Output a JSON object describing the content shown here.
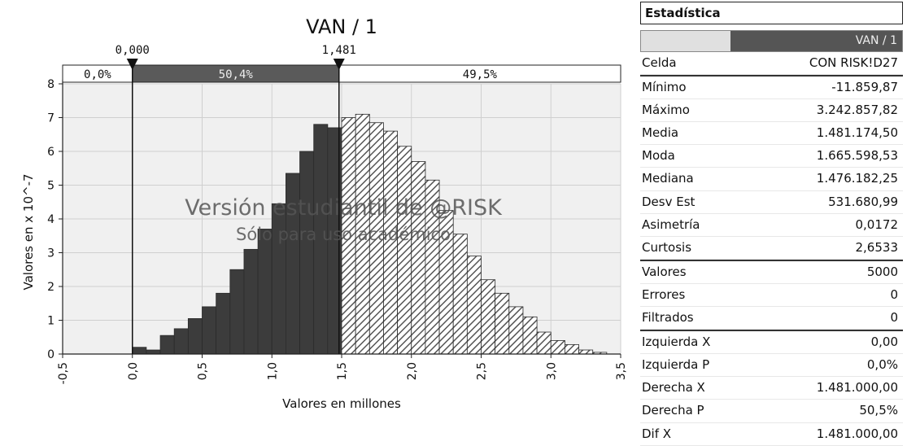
{
  "chart_data": {
    "type": "histogram",
    "title": "VAN / 1",
    "xlabel": "Valores en millones",
    "ylabel": "Valores en x 10^-7",
    "xlim": [
      -0.5,
      3.5
    ],
    "ylim": [
      0,
      8
    ],
    "x_ticks": [
      "-0,5",
      "0,0",
      "0,5",
      "1,0",
      "1,5",
      "2,0",
      "2,5",
      "3,0",
      "3,5"
    ],
    "y_ticks": [
      "0",
      "1",
      "2",
      "3",
      "4",
      "5",
      "6",
      "7",
      "8"
    ],
    "bin_width": 0.1,
    "bins": [
      {
        "x0": 0.0,
        "y": 0.2
      },
      {
        "x0": 0.1,
        "y": 0.12
      },
      {
        "x0": 0.2,
        "y": 0.55
      },
      {
        "x0": 0.3,
        "y": 0.75
      },
      {
        "x0": 0.4,
        "y": 1.05
      },
      {
        "x0": 0.5,
        "y": 1.4
      },
      {
        "x0": 0.6,
        "y": 1.8
      },
      {
        "x0": 0.7,
        "y": 2.5
      },
      {
        "x0": 0.8,
        "y": 3.1
      },
      {
        "x0": 0.9,
        "y": 3.7
      },
      {
        "x0": 1.0,
        "y": 4.45
      },
      {
        "x0": 1.1,
        "y": 5.35
      },
      {
        "x0": 1.2,
        "y": 6.0
      },
      {
        "x0": 1.3,
        "y": 6.8
      },
      {
        "x0": 1.4,
        "y": 6.7
      },
      {
        "x0": 1.5,
        "y": 7.0
      },
      {
        "x0": 1.6,
        "y": 7.1
      },
      {
        "x0": 1.7,
        "y": 6.85
      },
      {
        "x0": 1.8,
        "y": 6.6
      },
      {
        "x0": 1.9,
        "y": 6.15
      },
      {
        "x0": 2.0,
        "y": 5.7
      },
      {
        "x0": 2.1,
        "y": 5.15
      },
      {
        "x0": 2.2,
        "y": 4.25
      },
      {
        "x0": 2.3,
        "y": 3.55
      },
      {
        "x0": 2.4,
        "y": 2.9
      },
      {
        "x0": 2.5,
        "y": 2.2
      },
      {
        "x0": 2.6,
        "y": 1.8
      },
      {
        "x0": 2.7,
        "y": 1.4
      },
      {
        "x0": 2.8,
        "y": 1.1
      },
      {
        "x0": 2.9,
        "y": 0.65
      },
      {
        "x0": 3.0,
        "y": 0.4
      },
      {
        "x0": 3.1,
        "y": 0.28
      },
      {
        "x0": 3.2,
        "y": 0.12
      },
      {
        "x0": 3.3,
        "y": 0.05
      }
    ],
    "markers": [
      {
        "value": 0.0,
        "label": "0,000"
      },
      {
        "value": 1.481,
        "label": "1,481"
      }
    ],
    "percent_bands": [
      {
        "label": "0,0%",
        "from": -0.5,
        "to": 0.0
      },
      {
        "label": "50,4%",
        "from": 0.0,
        "to": 1.481
      },
      {
        "label": "49,5%",
        "from": 1.481,
        "to": 3.5
      }
    ],
    "watermark": {
      "line1": "Versión estudiantil de @RISK",
      "line2": "Sólo para uso académico"
    },
    "grid": true
  },
  "stats_panel": {
    "title": "Estadística",
    "column_header": "VAN / 1",
    "rows": [
      {
        "label": "Celda",
        "value": "CON RISK!D27"
      },
      {
        "label": "Mínimo",
        "value": "-11.859,87"
      },
      {
        "label": "Máximo",
        "value": "3.242.857,82"
      },
      {
        "label": "Media",
        "value": "1.481.174,50"
      },
      {
        "label": "Moda",
        "value": "1.665.598,53"
      },
      {
        "label": "Mediana",
        "value": "1.476.182,25"
      },
      {
        "label": "Desv Est",
        "value": "531.680,99"
      },
      {
        "label": "Asimetría",
        "value": "0,0172"
      },
      {
        "label": "Curtosis",
        "value": "2,6533"
      },
      {
        "label": "Valores",
        "value": "5000"
      },
      {
        "label": "Errores",
        "value": "0"
      },
      {
        "label": "Filtrados",
        "value": "0"
      },
      {
        "label": "Izquierda X",
        "value": "0,00"
      },
      {
        "label": "Izquierda P",
        "value": "0,0%"
      },
      {
        "label": "Derecha X",
        "value": "1.481.000,00"
      },
      {
        "label": "Derecha P",
        "value": "50,5%"
      },
      {
        "label": "Dif X",
        "value": "1.481.000,00"
      }
    ]
  },
  "colors": {
    "bar_dark": "#3c3c3c",
    "bar_hatched": "#6e6e6e",
    "band_dark": "#5a5a5a",
    "plot_bg": "#f0f0f0",
    "grid": "#cfcfcf"
  }
}
